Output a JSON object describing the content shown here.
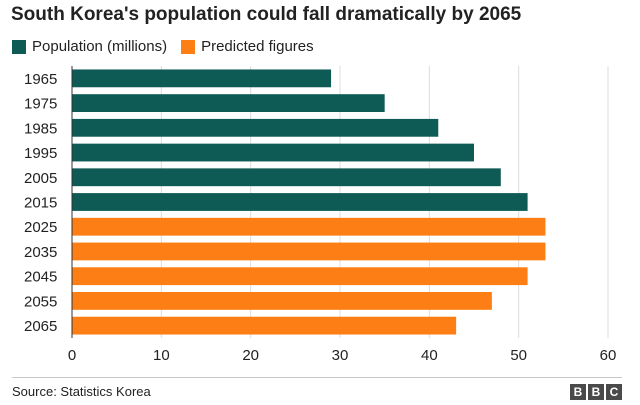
{
  "title": "South Korea's population could fall dramatically by 2065",
  "legend": [
    {
      "label": "Population (millions)",
      "color": "#0e5a54"
    },
    {
      "label": "Predicted figures",
      "color": "#fd7e14"
    }
  ],
  "footer": {
    "source": "Source: Statistics Korea",
    "logo": [
      "B",
      "B",
      "C"
    ]
  },
  "chart_data": {
    "type": "bar",
    "orientation": "horizontal",
    "categories": [
      "1965",
      "1975",
      "1985",
      "1995",
      "2005",
      "2015",
      "2025",
      "2035",
      "2045",
      "2055",
      "2065"
    ],
    "values": [
      29,
      35,
      41,
      45,
      48,
      51,
      53,
      53,
      51,
      47,
      43
    ],
    "predicted": [
      false,
      false,
      false,
      false,
      false,
      false,
      true,
      true,
      true,
      true,
      true
    ],
    "colors": {
      "actual": "#0e5a54",
      "predicted": "#fd7e14"
    },
    "xlim": [
      0,
      60
    ],
    "xticks": [
      0,
      10,
      20,
      30,
      40,
      50,
      60
    ],
    "grid": true,
    "legend_position": "top-left"
  }
}
